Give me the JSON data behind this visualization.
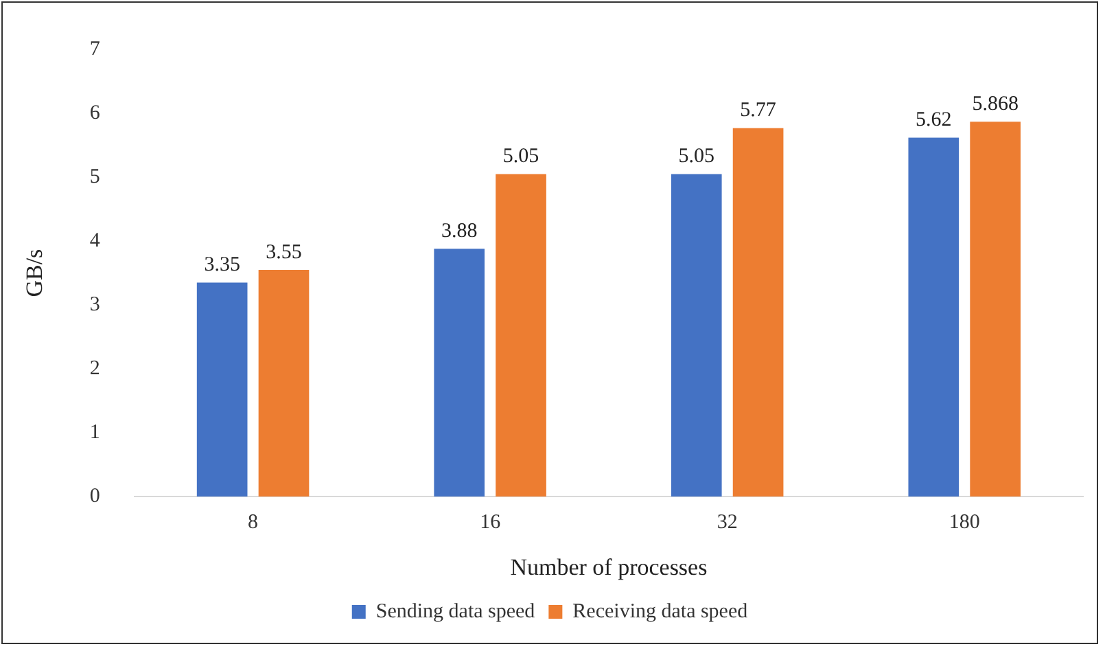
{
  "chart_data": {
    "type": "bar",
    "xlabel": "Number of processes",
    "ylabel": "GB/s",
    "categories": [
      "8",
      "16",
      "32",
      "180"
    ],
    "series": [
      {
        "name": "Sending data speed",
        "color": "#4472c4",
        "values": [
          3.35,
          3.88,
          5.05,
          5.62
        ]
      },
      {
        "name": "Receiving data speed",
        "color": "#ed7d31",
        "values": [
          3.55,
          5.05,
          5.77,
          5.868
        ]
      }
    ],
    "ylim": [
      0,
      7
    ],
    "yticks": [
      0,
      1,
      2,
      3,
      4,
      5,
      6,
      7
    ],
    "legend": "bottom",
    "data_labels": true
  }
}
